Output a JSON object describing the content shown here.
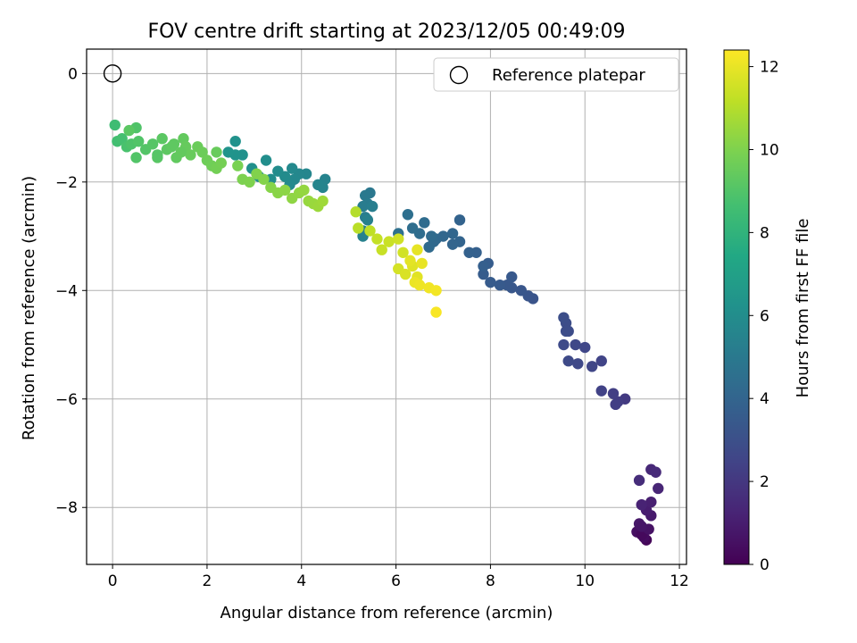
{
  "chart_data": {
    "type": "scatter",
    "title": "FOV centre drift starting at 2023/12/05 00:49:09",
    "xlabel": "Angular distance from reference (arcmin)",
    "ylabel": "Rotation from reference (arcmin)",
    "xlim": [
      -0.55,
      12.15
    ],
    "ylim": [
      -9.05,
      0.45
    ],
    "xticks": [
      0,
      2,
      4,
      6,
      8,
      10,
      12
    ],
    "yticks": [
      0,
      -2,
      -4,
      -6,
      -8
    ],
    "grid": true,
    "legend": {
      "position": "upper-right",
      "entries": [
        "Reference platepar"
      ]
    },
    "reference_point": {
      "x": 0,
      "y": 0
    },
    "colorbar": {
      "label": "Hours from first FF file",
      "range": [
        0,
        12.4
      ],
      "ticks": [
        0,
        2,
        4,
        6,
        8,
        10,
        12
      ],
      "colormap": "viridis"
    },
    "points": [
      [
        11.3,
        -8.6,
        0.2
      ],
      [
        11.25,
        -8.55,
        0.4
      ],
      [
        11.1,
        -8.45,
        0.5
      ],
      [
        11.2,
        -8.5,
        0.3
      ],
      [
        11.35,
        -8.4,
        0.6
      ],
      [
        11.15,
        -8.3,
        0.8
      ],
      [
        11.4,
        -8.15,
        0.9
      ],
      [
        11.3,
        -8.05,
        1.0
      ],
      [
        11.4,
        -7.9,
        1.1
      ],
      [
        11.2,
        -7.95,
        1.2
      ],
      [
        11.55,
        -7.65,
        1.3
      ],
      [
        11.4,
        -7.3,
        1.4
      ],
      [
        11.5,
        -7.35,
        1.5
      ],
      [
        11.15,
        -7.5,
        1.6
      ],
      [
        11.2,
        -8.35,
        0.7
      ],
      [
        10.85,
        -6.0,
        2.1
      ],
      [
        10.7,
        -6.05,
        2.2
      ],
      [
        10.65,
        -6.1,
        2.25
      ],
      [
        10.6,
        -5.9,
        2.3
      ],
      [
        10.35,
        -5.85,
        2.4
      ],
      [
        10.35,
        -5.3,
        2.5
      ],
      [
        10.15,
        -5.4,
        2.55
      ],
      [
        10.0,
        -5.05,
        2.6
      ],
      [
        9.8,
        -5.0,
        2.65
      ],
      [
        9.85,
        -5.35,
        2.7
      ],
      [
        9.65,
        -5.3,
        2.75
      ],
      [
        9.55,
        -5.0,
        2.8
      ],
      [
        9.65,
        -4.75,
        2.85
      ],
      [
        9.6,
        -4.6,
        2.9
      ],
      [
        9.55,
        -4.5,
        2.95
      ],
      [
        9.6,
        -4.75,
        2.9
      ],
      [
        8.9,
        -4.15,
        3.2
      ],
      [
        8.8,
        -4.1,
        3.25
      ],
      [
        8.65,
        -4.0,
        3.3
      ],
      [
        8.45,
        -3.95,
        3.35
      ],
      [
        8.35,
        -3.9,
        3.4
      ],
      [
        8.45,
        -3.75,
        3.45
      ],
      [
        8.2,
        -3.9,
        3.5
      ],
      [
        8.0,
        -3.85,
        3.55
      ],
      [
        7.85,
        -3.7,
        3.6
      ],
      [
        7.95,
        -3.5,
        3.65
      ],
      [
        7.85,
        -3.55,
        3.7
      ],
      [
        7.7,
        -3.3,
        3.75
      ],
      [
        7.55,
        -3.3,
        3.8
      ],
      [
        7.35,
        -2.7,
        3.9
      ],
      [
        7.35,
        -3.1,
        3.95
      ],
      [
        7.2,
        -3.15,
        4.0
      ],
      [
        7.2,
        -2.95,
        4.05
      ],
      [
        7.0,
        -3.0,
        4.1
      ],
      [
        6.85,
        -3.05,
        4.15
      ],
      [
        6.8,
        -3.1,
        4.2
      ],
      [
        6.7,
        -3.2,
        4.25
      ],
      [
        6.75,
        -3.0,
        4.3
      ],
      [
        6.6,
        -2.75,
        4.35
      ],
      [
        6.5,
        -2.95,
        4.4
      ],
      [
        6.35,
        -2.85,
        4.45
      ],
      [
        6.25,
        -2.6,
        4.5
      ],
      [
        6.05,
        -2.95,
        4.55
      ],
      [
        5.45,
        -2.2,
        4.9
      ],
      [
        5.35,
        -2.25,
        5.0
      ],
      [
        5.4,
        -2.4,
        5.1
      ],
      [
        5.3,
        -2.45,
        5.15
      ],
      [
        5.35,
        -2.65,
        5.2
      ],
      [
        5.5,
        -2.45,
        5.25
      ],
      [
        5.3,
        -2.9,
        5.3
      ],
      [
        5.4,
        -2.7,
        5.35
      ],
      [
        5.3,
        -3.0,
        5.4
      ],
      [
        4.5,
        -1.95,
        5.5
      ],
      [
        4.45,
        -2.1,
        5.55
      ],
      [
        4.35,
        -2.05,
        5.6
      ],
      [
        4.1,
        -1.85,
        5.65
      ],
      [
        3.95,
        -1.85,
        5.7
      ],
      [
        3.85,
        -1.95,
        5.75
      ],
      [
        3.8,
        -1.75,
        5.8
      ],
      [
        3.75,
        -2.05,
        5.85
      ],
      [
        3.65,
        -1.9,
        5.9
      ],
      [
        3.5,
        -1.8,
        5.95
      ],
      [
        3.35,
        -1.95,
        6.0
      ],
      [
        3.25,
        -1.6,
        6.05
      ],
      [
        3.1,
        -1.9,
        6.1
      ],
      [
        2.95,
        -1.75,
        6.15
      ],
      [
        2.75,
        -1.5,
        6.2
      ],
      [
        2.6,
        -1.25,
        6.25
      ],
      [
        2.6,
        -1.5,
        6.3
      ],
      [
        2.45,
        -1.45,
        6.35
      ],
      [
        0.05,
        -0.95,
        8.5
      ],
      [
        0.1,
        -1.25,
        8.6
      ],
      [
        0.2,
        -1.2,
        8.7
      ],
      [
        0.3,
        -1.35,
        8.8
      ],
      [
        0.4,
        -1.3,
        8.9
      ],
      [
        0.5,
        -1.0,
        8.95
      ],
      [
        0.55,
        -1.25,
        9.0
      ],
      [
        0.7,
        -1.4,
        9.05
      ],
      [
        0.85,
        -1.3,
        9.1
      ],
      [
        0.95,
        -1.55,
        9.15
      ],
      [
        1.05,
        -1.2,
        9.2
      ],
      [
        1.15,
        -1.4,
        9.25
      ],
      [
        1.25,
        -1.35,
        9.3
      ],
      [
        1.35,
        -1.55,
        9.35
      ],
      [
        1.5,
        -1.2,
        9.4
      ],
      [
        1.55,
        -1.35,
        9.45
      ],
      [
        1.65,
        -1.5,
        9.5
      ],
      [
        1.8,
        -1.35,
        9.55
      ],
      [
        1.9,
        -1.45,
        9.6
      ],
      [
        2.0,
        -1.6,
        9.65
      ],
      [
        2.1,
        -1.7,
        9.7
      ],
      [
        2.2,
        -1.75,
        9.75
      ],
      [
        2.3,
        -1.65,
        9.8
      ],
      [
        0.5,
        -1.55,
        9.0
      ],
      [
        0.95,
        -1.5,
        9.1
      ],
      [
        0.35,
        -1.05,
        9.2
      ],
      [
        1.3,
        -1.3,
        9.3
      ],
      [
        1.45,
        -1.45,
        9.4
      ],
      [
        2.2,
        -1.45,
        9.5
      ],
      [
        2.65,
        -1.7,
        9.9
      ],
      [
        2.75,
        -1.95,
        9.95
      ],
      [
        2.9,
        -2.0,
        10.0
      ],
      [
        3.05,
        -1.85,
        10.05
      ],
      [
        3.2,
        -1.95,
        10.1
      ],
      [
        3.35,
        -2.1,
        10.15
      ],
      [
        3.5,
        -2.2,
        10.2
      ],
      [
        3.65,
        -2.15,
        10.25
      ],
      [
        3.8,
        -2.3,
        10.3
      ],
      [
        3.95,
        -2.2,
        10.35
      ],
      [
        4.05,
        -2.15,
        10.4
      ],
      [
        4.15,
        -2.35,
        10.45
      ],
      [
        4.25,
        -2.4,
        10.5
      ],
      [
        4.35,
        -2.45,
        10.55
      ],
      [
        4.45,
        -2.35,
        10.6
      ],
      [
        5.15,
        -2.55,
        11.0
      ],
      [
        5.2,
        -2.85,
        11.1
      ],
      [
        5.45,
        -2.9,
        11.2
      ],
      [
        5.6,
        -3.05,
        11.3
      ],
      [
        5.7,
        -3.25,
        11.35
      ],
      [
        5.85,
        -3.1,
        11.4
      ],
      [
        6.05,
        -3.05,
        11.5
      ],
      [
        6.15,
        -3.3,
        11.55
      ],
      [
        6.05,
        -3.6,
        11.6
      ],
      [
        6.2,
        -3.7,
        11.7
      ],
      [
        6.35,
        -3.55,
        11.8
      ],
      [
        6.45,
        -3.75,
        11.85
      ],
      [
        6.3,
        -3.45,
        11.9
      ],
      [
        6.45,
        -3.25,
        11.95
      ],
      [
        6.55,
        -3.5,
        12.0
      ],
      [
        6.4,
        -3.85,
        12.05
      ],
      [
        6.5,
        -3.9,
        12.1
      ],
      [
        6.7,
        -3.95,
        12.15
      ],
      [
        6.85,
        -4.0,
        12.2
      ],
      [
        6.85,
        -4.4,
        12.3
      ]
    ]
  }
}
